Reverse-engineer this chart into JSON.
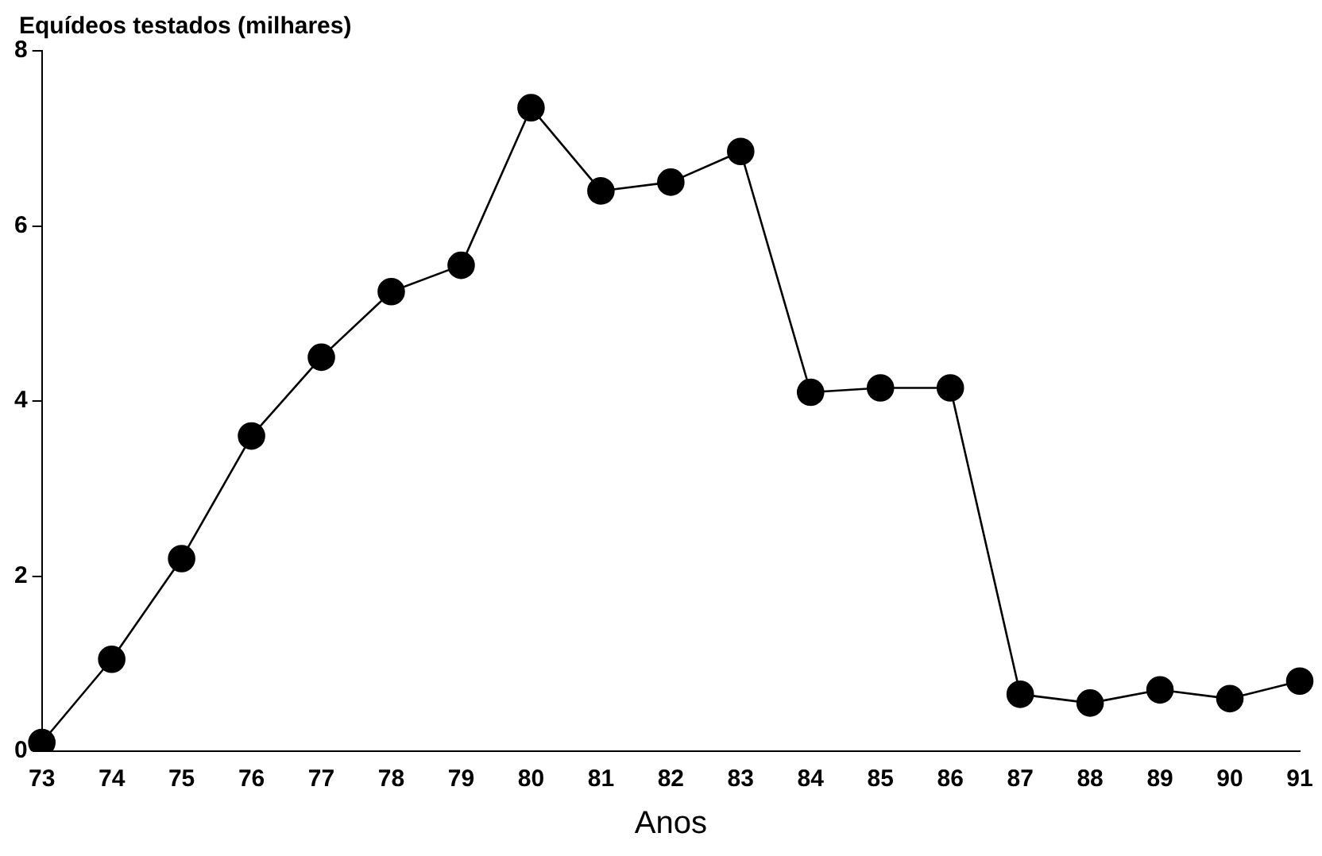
{
  "chart_data": {
    "type": "line",
    "ylabel": "Equídeos testados (milhares)",
    "xlabel": "Anos",
    "categories": [
      "73",
      "74",
      "75",
      "76",
      "77",
      "78",
      "79",
      "80",
      "81",
      "82",
      "83",
      "84",
      "85",
      "86",
      "87",
      "88",
      "89",
      "90",
      "91"
    ],
    "series": [
      {
        "color": "#000000",
        "values": [
          0.1,
          1.05,
          2.2,
          3.6,
          4.5,
          5.25,
          5.55,
          7.35,
          6.4,
          6.5,
          6.85,
          4.1,
          4.15,
          4.15,
          0.65,
          0.55,
          0.7,
          0.6,
          0.8
        ]
      }
    ],
    "ylim": [
      0,
      8
    ],
    "yticks": [
      0,
      2,
      4,
      6,
      8
    ],
    "grid": false,
    "legend": false,
    "marker": "circle",
    "line_style": "solid"
  }
}
